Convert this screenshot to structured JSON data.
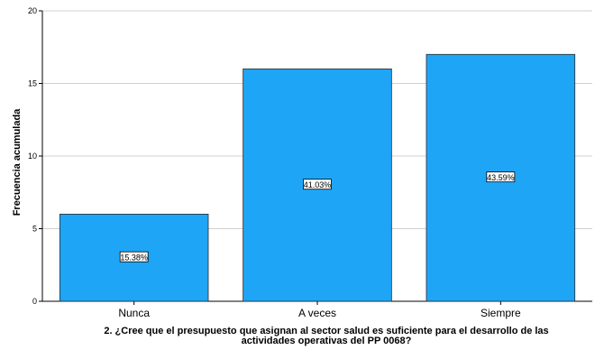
{
  "chart_data": {
    "type": "bar",
    "categories": [
      "Nunca",
      "A veces",
      "Siempre"
    ],
    "values": [
      6,
      16,
      17
    ],
    "data_labels": [
      "15.38%",
      "41.03%",
      "43.59%"
    ],
    "ylabel": "Frecuencia acumulada",
    "xlabel_lines": [
      "2. ¿Cree que el presupuesto que asignan al sector salud es suficiente para el desarrollo de las",
      "actividades operativas del PP 0068?"
    ],
    "ylim": [
      0,
      20
    ],
    "yticks": [
      0,
      5,
      10,
      15,
      20
    ],
    "grid": true,
    "bar_color": "#1FA5F5",
    "bar_edge_color": "#2b2b2b"
  }
}
